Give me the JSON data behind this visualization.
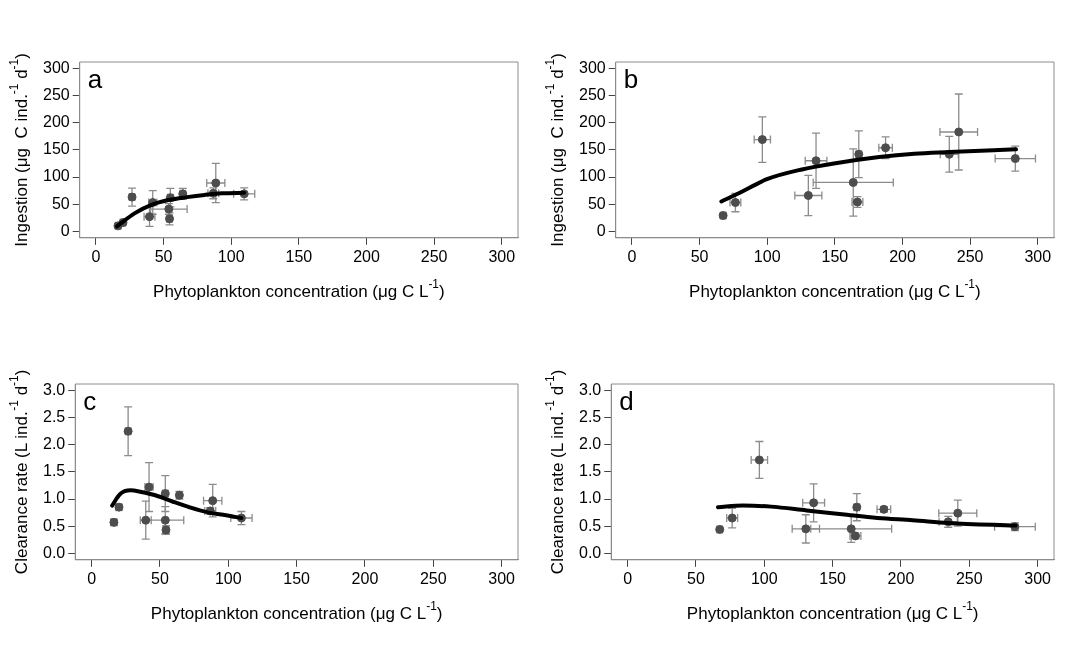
{
  "chart_data": [
    {
      "type": "scatter",
      "title": "a",
      "xlabel": "Phytoplankton concentration (μg C L$^{-1}$)",
      "ylabel": "Ingestion (μg  C ind.$^{-1}$ d$^{-1}$)",
      "xlim": [
        -12,
        312
      ],
      "ylim": [
        -12,
        312
      ],
      "xticks": [
        0,
        50,
        100,
        150,
        200,
        250,
        300
      ],
      "yticks": [
        0,
        50,
        100,
        150,
        200,
        250,
        300
      ],
      "grid": false,
      "legend": false,
      "marker": "circle",
      "series": [
        {
          "type": "scatter",
          "color": "#4d4d4d",
          "x": [
            16.3,
            20,
            26.7,
            39.6,
            42,
            53.9,
            54.4,
            55,
            64.2,
            86.8,
            88.6,
            109.6
          ],
          "values": [
            10,
            16,
            63,
            27,
            53,
            41,
            23,
            62,
            69,
            70,
            89,
            69
          ],
          "errors": [
            3,
            3,
            16.6,
            18,
            22,
            10,
            11,
            17,
            10,
            10,
            36,
            11
          ],
          "xerrors": [
            2,
            2,
            2,
            4,
            3,
            13.5,
            2,
            2,
            2,
            4,
            6.7,
            7.8
          ]
        },
        {
          "type": "line",
          "color": "#000000",
          "marker": "none",
          "x": [
            15.5,
            28.5,
            41.5,
            54.4,
            67.4,
            80.3,
            93.3,
            109.6
          ],
          "values": [
            9,
            33,
            49,
            58,
            63,
            67,
            70,
            71
          ]
        }
      ]
    },
    {
      "type": "scatter",
      "title": "b",
      "xlabel": "Phytoplankton concentration (μg C L$^{-1}$)",
      "ylabel": "Ingestion (μg  C ind.$^{-1}$ d$^{-1}$)",
      "xlim": [
        -12,
        312
      ],
      "ylim": [
        -12,
        312
      ],
      "xticks": [
        0,
        50,
        100,
        150,
        200,
        250,
        300
      ],
      "yticks": [
        0,
        50,
        100,
        150,
        200,
        250,
        300
      ],
      "grid": false,
      "legend": false,
      "marker": "circle",
      "series": [
        {
          "type": "scatter",
          "color": "#4d4d4d",
          "x": [
            67.4,
            76.5,
            96.4,
            130.4,
            136.1,
            163.6,
            166.7,
            167.7,
            187.5,
            234.6,
            241.6,
            283.4
          ],
          "values": [
            29,
            53,
            169,
            66,
            130,
            90,
            54,
            142,
            154,
            142,
            183,
            134
          ],
          "errors": [
            4,
            17,
            42,
            37,
            51,
            62,
            10,
            43,
            20,
            33,
            70,
            23
          ],
          "xerrors": [
            2,
            4,
            6,
            10,
            8,
            29.6,
            4,
            2,
            5,
            6.7,
            13.9,
            14.9
          ]
        },
        {
          "type": "line",
          "color": "#000000",
          "marker": "none",
          "x": [
            66.1,
            79,
            99.8,
            125.7,
            151.7,
            182.8,
            208.7,
            234.6,
            283.9
          ],
          "values": [
            55,
            70,
            96,
            114,
            126,
            137,
            143,
            146,
            151
          ]
        }
      ]
    },
    {
      "type": "scatter",
      "title": "c",
      "xlabel": "Phytoplankton concentration (μg C L$^{-1}$)",
      "ylabel": "Clearance rate (L ind.$^{-1}$ d$^{-1}$)",
      "xlim": [
        -12,
        312
      ],
      "ylim": [
        -0.12,
        3.12
      ],
      "xticks": [
        0,
        50,
        100,
        150,
        200,
        250,
        300
      ],
      "yticks": [
        {
          "value": 0,
          "label": "0.0"
        },
        {
          "value": 0.5,
          "label": "0.5"
        },
        {
          "value": 1,
          "label": "1.0"
        },
        {
          "value": 1.5,
          "label": "1.5"
        },
        {
          "value": 2,
          "label": "2.0"
        },
        {
          "value": 2.5,
          "label": "2.5"
        },
        {
          "value": 3,
          "label": "3.0"
        }
      ],
      "grid": false,
      "legend": false,
      "marker": "circle",
      "series": [
        {
          "type": "scatter",
          "color": "#4d4d4d",
          "x": [
            16.3,
            20,
            26.7,
            39.6,
            42,
            53.9,
            53.9,
            54.4,
            64.2,
            86.8,
            88.6,
            109.6
          ],
          "values": [
            0.57,
            0.85,
            2.25,
            0.61,
            1.22,
            0.61,
            1.1,
            0.43,
            1.07,
            0.78,
            0.97,
            0.65
          ],
          "errors": [
            0.06,
            0.05,
            0.45,
            0.35,
            0.45,
            0.25,
            0.33,
            0.08,
            0.07,
            0.06,
            0.3,
            0.12
          ],
          "xerrors": [
            2,
            2,
            2,
            4,
            3,
            13.5,
            2,
            2,
            2,
            4,
            6.7,
            7.8
          ]
        },
        {
          "type": "line",
          "color": "#000000",
          "marker": "none",
          "x": [
            15,
            20.7,
            28.5,
            36.3,
            46.6,
            59.6,
            72.5,
            85.5,
            98.4,
            109.6
          ],
          "values": [
            0.88,
            1.09,
            1.16,
            1.13,
            1.07,
            0.95,
            0.84,
            0.75,
            0.7,
            0.65
          ]
        }
      ]
    },
    {
      "type": "scatter",
      "title": "d",
      "xlabel": "Phytoplankton concentration (μg C L$^{-1}$)",
      "ylabel": "Clearance rate (L ind.$^{-1}$ d$^{-1}$)",
      "xlim": [
        -12,
        312
      ],
      "ylim": [
        -0.12,
        3.12
      ],
      "xticks": [
        0,
        50,
        100,
        150,
        200,
        250,
        300
      ],
      "yticks": [
        {
          "value": 0,
          "label": "0.0"
        },
        {
          "value": 0.5,
          "label": "0.5"
        },
        {
          "value": 1,
          "label": "1.0"
        },
        {
          "value": 1.5,
          "label": "1.5"
        },
        {
          "value": 2,
          "label": "2.0"
        },
        {
          "value": 2.5,
          "label": "2.5"
        },
        {
          "value": 3,
          "label": "3.0"
        }
      ],
      "grid": false,
      "legend": false,
      "marker": "circle",
      "series": [
        {
          "type": "scatter",
          "color": "#4d4d4d",
          "x": [
            67.4,
            76.5,
            96.4,
            130.4,
            136.1,
            163.6,
            166.7,
            167.7,
            187.5,
            234.6,
            241.6,
            283.4
          ],
          "values": [
            0.44,
            0.65,
            1.72,
            0.45,
            0.93,
            0.45,
            0.32,
            0.85,
            0.81,
            0.58,
            0.74,
            0.49
          ],
          "errors": [
            0.03,
            0.18,
            0.34,
            0.26,
            0.35,
            0.25,
            0.05,
            0.25,
            0.05,
            0.1,
            0.24,
            0.07
          ],
          "xerrors": [
            2,
            4,
            6,
            10,
            8,
            29.6,
            4,
            2,
            5,
            6.7,
            13.9,
            14.9
          ]
        },
        {
          "type": "line",
          "color": "#000000",
          "marker": "none",
          "x": [
            66.1,
            84.3,
            105,
            130.9,
            156.9,
            182.8,
            208.7,
            234.6,
            283.9
          ],
          "values": [
            0.85,
            0.88,
            0.86,
            0.79,
            0.72,
            0.65,
            0.61,
            0.56,
            0.51
          ]
        }
      ]
    }
  ]
}
